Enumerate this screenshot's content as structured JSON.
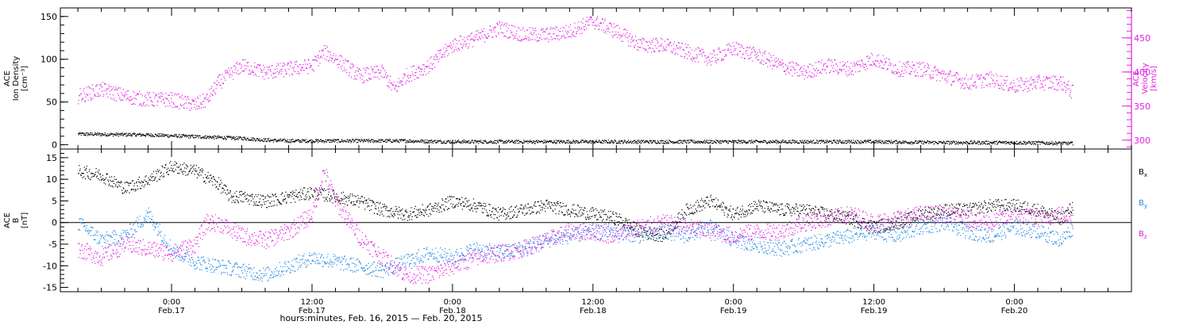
{
  "chart_data": [
    {
      "type": "scatter",
      "panel": "top",
      "left_axis_label_lines": [
        "ACE",
        "Ion Density",
        "[cm⁻³]"
      ],
      "right_axis_label_lines": [
        "ACE",
        "Velocity",
        "[km/s]"
      ],
      "left_ylim": [
        -5,
        160
      ],
      "left_yticks": [
        "0",
        "50",
        "100",
        "150"
      ],
      "right_ylim": [
        287,
        494
      ],
      "right_yticks": [
        "300",
        "350",
        "400",
        "450"
      ],
      "series": [
        {
          "axis": "left",
          "color": "#000000",
          "x_hours": [
            -8,
            -2,
            2,
            4,
            6,
            8,
            10,
            12,
            16,
            20,
            24,
            30,
            36,
            42,
            48,
            54,
            60,
            66,
            72,
            77
          ],
          "values": [
            13,
            12,
            10,
            9,
            8,
            6,
            5,
            5,
            5,
            5,
            4,
            4,
            4,
            4,
            4,
            4,
            4,
            3,
            3,
            2
          ]
        },
        {
          "axis": "right",
          "color": "#e020e0",
          "x_hours": [
            -8,
            -6,
            -4,
            -2,
            0,
            2,
            3,
            4,
            6,
            8,
            10,
            12,
            13,
            14,
            16,
            18,
            19,
            20,
            22,
            24,
            26,
            28,
            30,
            32,
            34,
            36,
            38,
            40,
            42,
            44,
            46,
            48,
            50,
            52,
            54,
            56,
            58,
            60,
            62,
            64,
            66,
            68,
            70,
            72,
            74,
            76,
            77
          ],
          "values": [
            365,
            375,
            365,
            360,
            360,
            352,
            360,
            385,
            410,
            400,
            405,
            410,
            430,
            420,
            395,
            400,
            375,
            395,
            410,
            440,
            450,
            465,
            455,
            455,
            460,
            475,
            460,
            440,
            440,
            430,
            420,
            435,
            425,
            410,
            400,
            410,
            405,
            420,
            405,
            405,
            395,
            385,
            390,
            380,
            385,
            385,
            370
          ]
        }
      ]
    },
    {
      "type": "scatter",
      "panel": "bottom",
      "left_axis_label_lines": [
        "ACE",
        "B",
        "[nT]"
      ],
      "ylim": [
        -16,
        17
      ],
      "yticks": [
        "-15",
        "-10",
        "-5",
        "0",
        "5",
        "10",
        "15"
      ],
      "series": [
        {
          "name": "Bx",
          "label_main": "B",
          "label_sub": "x",
          "color": "#000000",
          "x_hours": [
            -8,
            -6,
            -4,
            -2,
            0,
            2,
            4,
            5,
            6,
            8,
            10,
            12,
            14,
            16,
            18,
            20,
            22,
            24,
            26,
            28,
            30,
            32,
            34,
            36,
            38,
            40,
            42,
            44,
            46,
            48,
            50,
            52,
            54,
            56,
            58,
            60,
            62,
            64,
            66,
            68,
            70,
            72,
            74,
            76,
            77
          ],
          "values": [
            12,
            11,
            8,
            10,
            13,
            12,
            9,
            6,
            6,
            5,
            6,
            7,
            6,
            5,
            3,
            2,
            3,
            5,
            4,
            2,
            3,
            4,
            3,
            2,
            1,
            -2,
            -3,
            3,
            5,
            2,
            4,
            3,
            3,
            2,
            1,
            -1,
            0,
            2,
            3,
            3,
            4,
            4,
            3,
            1,
            4
          ]
        },
        {
          "name": "By",
          "label_main": "B",
          "label_sub": "y",
          "color": "#1e88e5",
          "x_hours": [
            -8,
            -6,
            -4,
            -2,
            0,
            2,
            4,
            6,
            8,
            10,
            12,
            14,
            16,
            18,
            20,
            22,
            24,
            26,
            28,
            30,
            32,
            34,
            36,
            38,
            40,
            42,
            44,
            46,
            48,
            50,
            52,
            54,
            56,
            58,
            60,
            62,
            64,
            66,
            68,
            70,
            72,
            74,
            76,
            77
          ],
          "values": [
            0,
            -4,
            -3,
            2,
            -6,
            -9,
            -10,
            -11,
            -12,
            -10,
            -8,
            -9,
            -10,
            -11,
            -9,
            -7,
            -8,
            -6,
            -7,
            -6,
            -4,
            -3,
            -2,
            -2,
            -3,
            -2,
            -3,
            -1,
            -4,
            -5,
            -6,
            -5,
            -4,
            -3,
            -2,
            -3,
            -1,
            0,
            -2,
            -3,
            -1,
            -2,
            -4,
            -1
          ]
        },
        {
          "name": "Bz",
          "label_main": "B",
          "label_sub": "z",
          "color": "#e020e0",
          "x_hours": [
            -8,
            -6,
            -4,
            -2,
            0,
            2,
            3,
            4,
            6,
            8,
            10,
            12,
            13,
            14,
            16,
            18,
            20,
            22,
            24,
            26,
            28,
            30,
            32,
            34,
            36,
            38,
            40,
            42,
            44,
            46,
            48,
            50,
            52,
            54,
            56,
            58,
            60,
            62,
            64,
            66,
            68,
            70,
            72,
            74,
            76,
            77
          ],
          "values": [
            -6,
            -8,
            -5,
            -6,
            -7,
            -5,
            0,
            0,
            -3,
            -4,
            -2,
            2,
            12,
            5,
            -3,
            -8,
            -12,
            -12,
            -10,
            -8,
            -7,
            -6,
            -4,
            -2,
            -2,
            -3,
            -1,
            0,
            -1,
            -2,
            -3,
            -2,
            -2,
            0,
            1,
            2,
            0,
            1,
            2,
            2,
            1,
            0,
            2,
            1,
            2,
            1
          ]
        }
      ]
    }
  ],
  "x_axis": {
    "range_hours": [
      -9.5,
      82
    ],
    "major_ticks": [
      {
        "hour": 0,
        "time": "0:00",
        "date": "Feb.17"
      },
      {
        "hour": 12,
        "time": "12:00",
        "date": "Feb.17"
      },
      {
        "hour": 24,
        "time": "0:00",
        "date": "Feb.18"
      },
      {
        "hour": 36,
        "time": "12:00",
        "date": "Feb.18"
      },
      {
        "hour": 48,
        "time": "0:00",
        "date": "Feb.19"
      },
      {
        "hour": 60,
        "time": "12:00",
        "date": "Feb.19"
      },
      {
        "hour": 72,
        "time": "0:00",
        "date": "Feb.20"
      }
    ],
    "title": "hours:minutes, Feb. 16, 2015 — Feb. 20, 2015"
  }
}
